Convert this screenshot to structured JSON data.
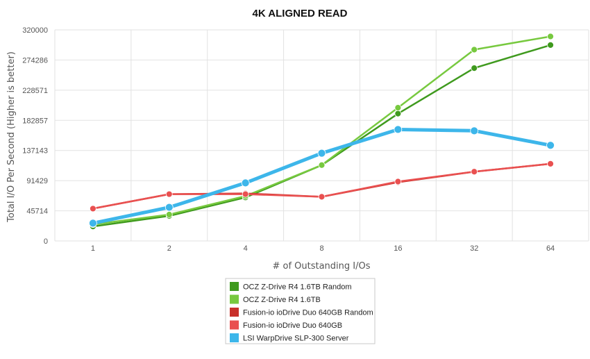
{
  "chart_data": {
    "type": "line",
    "title": "4K ALIGNED READ",
    "xlabel": "# of Outstanding I/Os",
    "ylabel": "Total I/O Per Second (Higher is better)",
    "categories": [
      "1",
      "2",
      "4",
      "8",
      "16",
      "32",
      "64"
    ],
    "y_ticks": [
      "0",
      "45714",
      "91429",
      "137143",
      "182857",
      "228571",
      "274286",
      "320000"
    ],
    "ylim": [
      0,
      320000
    ],
    "grid": true,
    "legend_position": "bottom",
    "series": [
      {
        "name": "OCZ Z-Drive R4 1.6TB Random",
        "color": "#3f9a1e",
        "values": [
          22000,
          38000,
          66000,
          115000,
          193000,
          262000,
          297000
        ]
      },
      {
        "name": "OCZ Z-Drive R4 1.6TB",
        "color": "#77c93f",
        "values": [
          25000,
          40000,
          68000,
          115000,
          202000,
          290000,
          310000
        ]
      },
      {
        "name": "Fusion-io ioDrive Duo 640GB Random",
        "color": "#c8302a",
        "values": [
          49000,
          71000,
          72000,
          67000,
          89000,
          105000,
          117000
        ]
      },
      {
        "name": "Fusion-io ioDrive Duo 640GB",
        "color": "#e95050",
        "values": [
          49000,
          71000,
          71000,
          67000,
          90000,
          105000,
          117000
        ]
      },
      {
        "name": "LSI WarpDrive SLP-300 Server",
        "color": "#3db6ea",
        "values": [
          27000,
          51000,
          88000,
          133000,
          169000,
          167000,
          145000
        ]
      }
    ]
  }
}
